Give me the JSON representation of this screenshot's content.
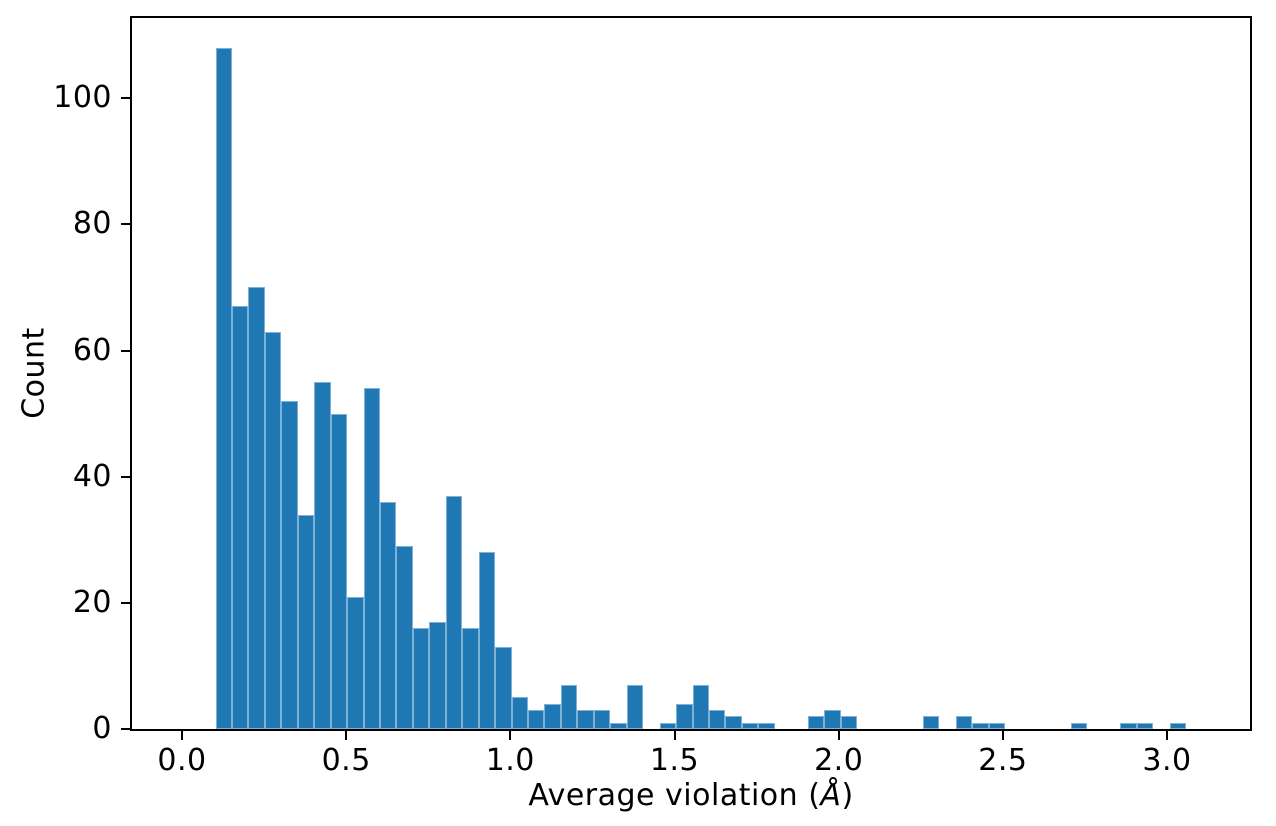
{
  "figure": {
    "background": "#ffffff",
    "axis_color": "#000000",
    "text_color": "#000000"
  },
  "chart_data": {
    "type": "bar",
    "subtype": "histogram",
    "title": "",
    "xlabel": "Average violation (Å)",
    "xlabel_parts": {
      "prefix": "Average violation (",
      "symbol": "Å",
      "suffix": ")"
    },
    "ylabel": "Count",
    "bar_color": "#1f77b4",
    "bar_edge_highlight": "#7fb0d5",
    "bin_start": 0.102,
    "bin_width": 0.0501,
    "counts": [
      108,
      67,
      70,
      63,
      52,
      34,
      55,
      50,
      21,
      54,
      36,
      29,
      16,
      17,
      37,
      16,
      28,
      13,
      5,
      3,
      4,
      7,
      3,
      3,
      1,
      7,
      0,
      1,
      4,
      7,
      3,
      2,
      1,
      1,
      0,
      0,
      2,
      3,
      2,
      0,
      0,
      0,
      0,
      2,
      0,
      2,
      1,
      1,
      0,
      0,
      0,
      0,
      1,
      0,
      0,
      1,
      1,
      0,
      1
    ],
    "xticks": {
      "values": [
        0.0,
        0.5,
        1.0,
        1.5,
        2.0,
        2.5,
        3.0
      ],
      "labels": [
        "0.0",
        "0.5",
        "1.0",
        "1.5",
        "2.0",
        "2.5",
        "3.0"
      ]
    },
    "yticks": {
      "values": [
        0,
        20,
        40,
        60,
        80,
        100
      ],
      "labels": [
        "0",
        "20",
        "40",
        "60",
        "80",
        "100"
      ]
    },
    "xlim": [
      -0.1523,
      3.2527
    ],
    "ylim": [
      0,
      112.7
    ],
    "grid": false,
    "legend": null
  }
}
